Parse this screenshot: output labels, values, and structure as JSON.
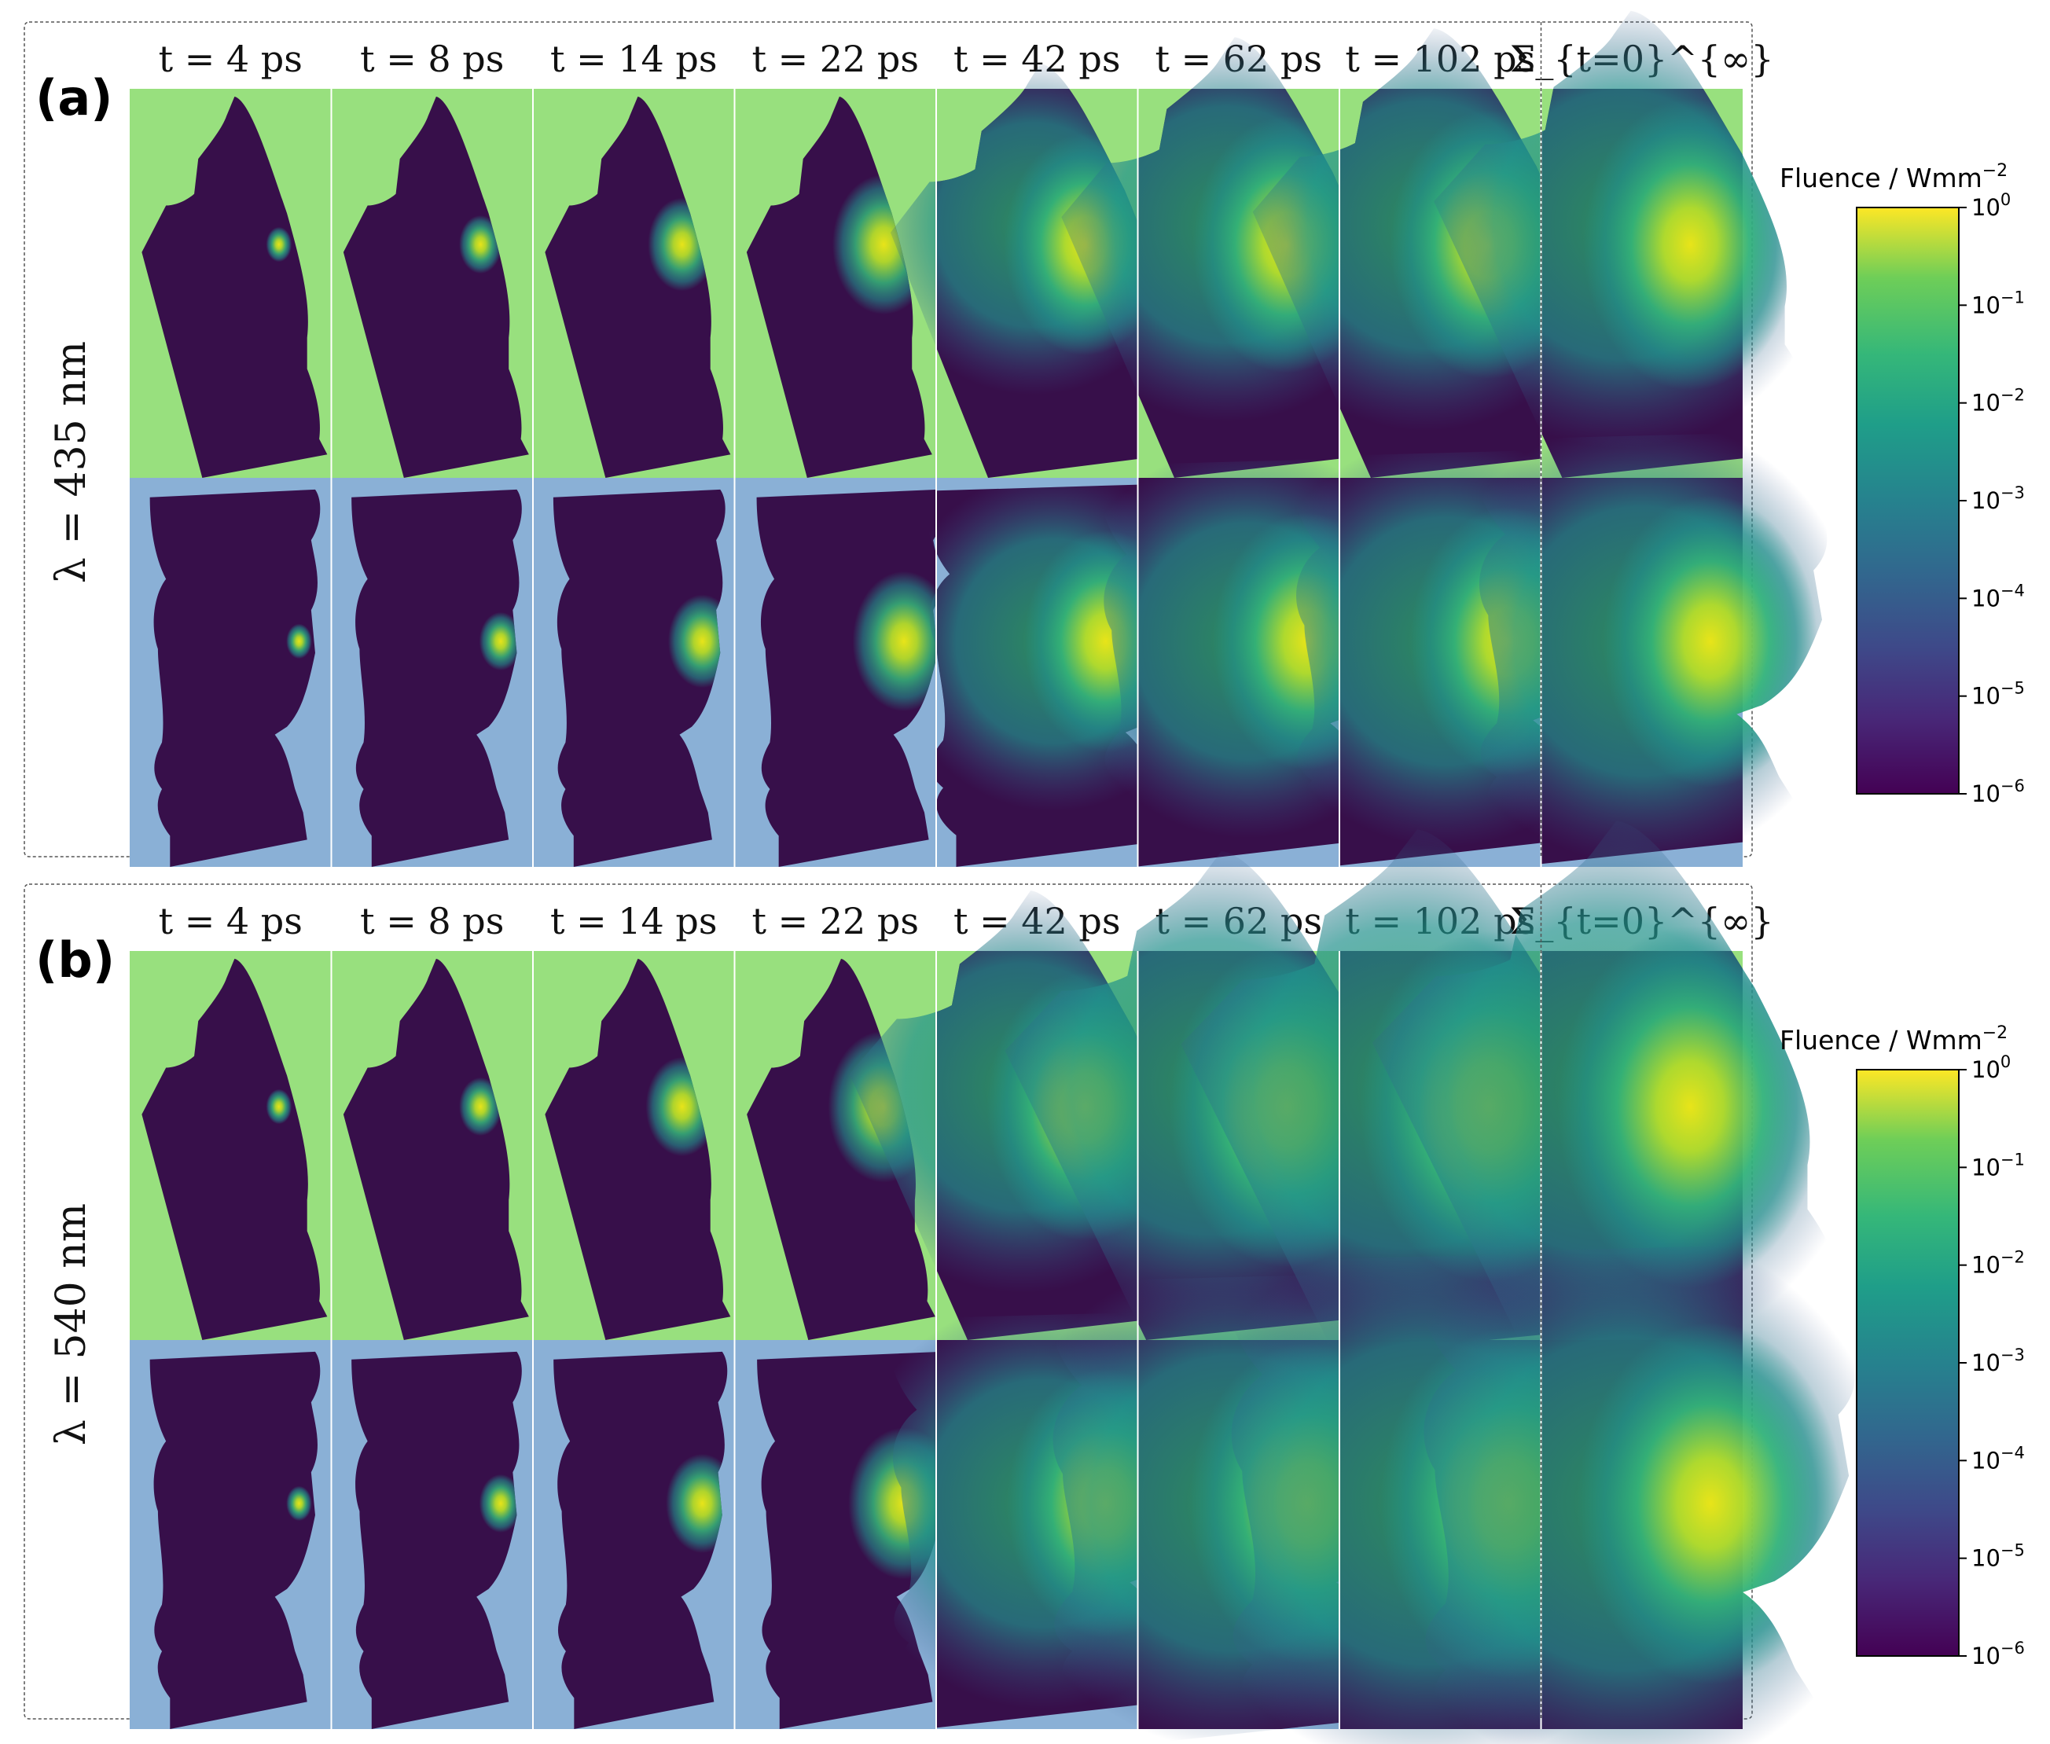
{
  "chart_data": {
    "type": "heatmap",
    "columns": [
      "t = 4 ps",
      "t = 8 ps",
      "t = 14 ps",
      "t = 22 ps",
      "t = 42 ps",
      "t = 62 ps",
      "t = 102 ps",
      "Σ_{t=0}^{∞}"
    ],
    "colorbar": {
      "title": "Fluence / Wmm",
      "title_exponent": "−2",
      "scale": "log",
      "colormap": "viridis",
      "range": [
        1e-06,
        1
      ],
      "ticks": [
        {
          "base": "10",
          "exp": "0"
        },
        {
          "base": "10",
          "exp": "−1"
        },
        {
          "base": "10",
          "exp": "−2"
        },
        {
          "base": "10",
          "exp": "−3"
        },
        {
          "base": "10",
          "exp": "−4"
        },
        {
          "base": "10",
          "exp": "−5"
        },
        {
          "base": "10",
          "exp": "−6"
        }
      ]
    },
    "panels": [
      {
        "label": "(a)",
        "wavelength_label": "λ = 435 nm",
        "view_backgrounds": [
          "#98e07e",
          "#8ab0d6"
        ],
        "spread": [
          0.06,
          0.1,
          0.16,
          0.24,
          0.38,
          0.44,
          0.46,
          0.5
        ]
      },
      {
        "label": "(b)",
        "wavelength_label": "λ = 540 nm",
        "view_backgrounds": [
          "#98e07e",
          "#8ab0d6"
        ],
        "spread": [
          0.06,
          0.1,
          0.17,
          0.26,
          0.46,
          0.55,
          0.6,
          0.62
        ]
      }
    ]
  }
}
